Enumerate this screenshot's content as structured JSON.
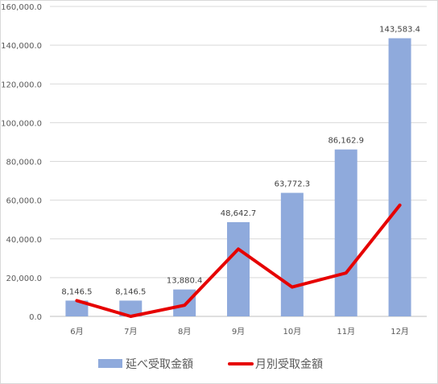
{
  "chart_data": {
    "type": "bar",
    "categories": [
      "6月",
      "7月",
      "8月",
      "9月",
      "10月",
      "11月",
      "12月"
    ],
    "y_ticks": [
      "0.0",
      "20,000.0",
      "40,000.0",
      "60,000.0",
      "80,000.0",
      "100,000.0",
      "120,000.0",
      "140,000.0",
      "160,000.0"
    ],
    "ylim": [
      0,
      160000
    ],
    "grid": true,
    "legend_position": "bottom",
    "series": [
      {
        "name": "延べ受取金額",
        "type": "bar",
        "color": "#8faadc",
        "values": [
          8146.5,
          8146.5,
          13880.4,
          48642.7,
          63772.3,
          86162.9,
          143583.4
        ],
        "labels": [
          "8,146.5",
          "8,146.5",
          "13,880.4",
          "48,642.7",
          "63,772.3",
          "86,162.9",
          "143,583.4"
        ]
      },
      {
        "name": "月別受取金額",
        "type": "line",
        "color": "#e60000",
        "values": [
          8146.5,
          0,
          5733.9,
          34762.3,
          15129.6,
          22390.6,
          57420.5
        ]
      }
    ]
  }
}
